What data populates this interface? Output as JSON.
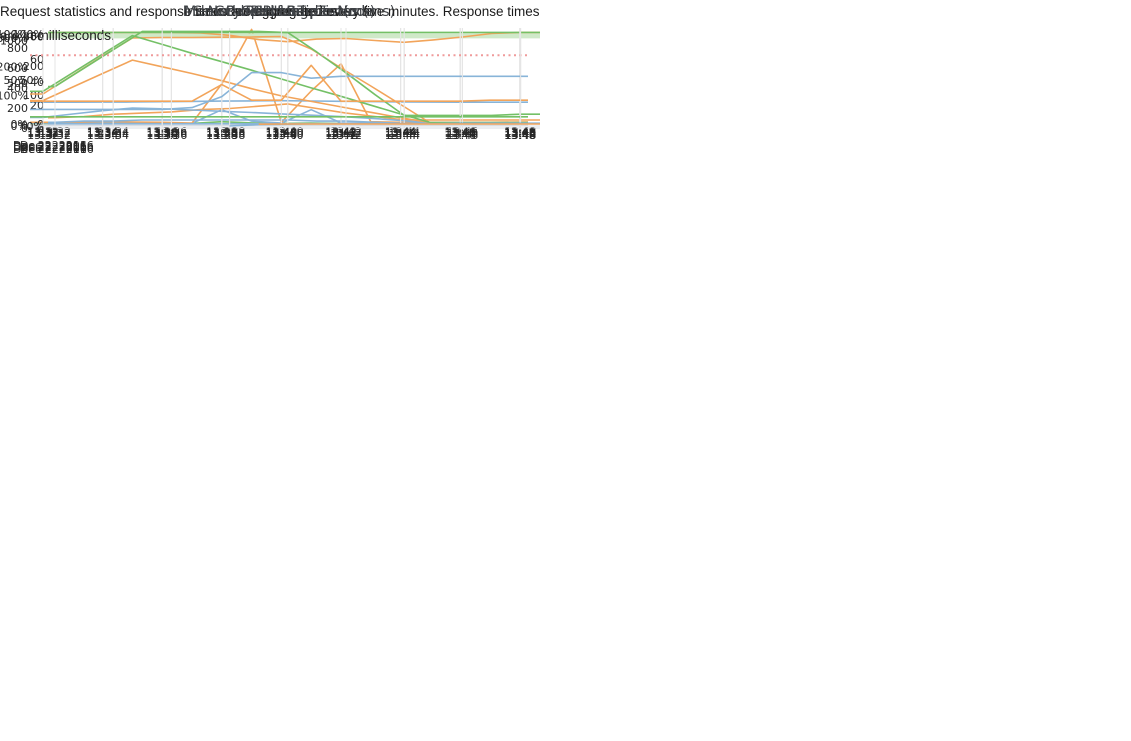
{
  "page": {
    "background": "#ffffff"
  },
  "note": {
    "text": "Request statistics and response times are aggregated every five minutes. Response times are in milliseconds."
  },
  "style": {
    "title_color": "#3f4246",
    "tick_color": "#262626",
    "grid_color": "#e5e5e5",
    "axis_color": "#d8dde3",
    "blue": "#88b4d8",
    "orange": "#f2a45a",
    "green": "#74c066",
    "light_green": "#cfe9c8",
    "red": "#ef9a9a"
  },
  "x_axis": {
    "tick_labels": [
      "13:32",
      "13:34",
      "13:36",
      "13:38",
      "13:40",
      "13:42",
      "13:44",
      "13:46",
      "13:48"
    ],
    "date_label": "Dec 22. 2016"
  },
  "chart_data": [
    {
      "type": "line",
      "title": "CPU Usage",
      "ylim": [
        0,
        335
      ],
      "y_ticks": [
        {
          "v": 0,
          "label": "0%"
        },
        {
          "v": 100,
          "label": "100%"
        },
        {
          "v": 200,
          "label": "200%"
        },
        {
          "v": 300,
          "label": "300%"
        }
      ],
      "series": [
        {
          "name": "series-green",
          "color": "#74c066",
          "values": [
            2,
            2,
            3,
            2,
            2,
            2,
            8,
            4,
            2,
            3,
            2,
            2,
            2,
            2,
            2,
            2,
            2
          ]
        },
        {
          "name": "series-blue",
          "color": "#88b4d8",
          "values": [
            3,
            3,
            4,
            3,
            3,
            2,
            50,
            10,
            3,
            50,
            4,
            3,
            3,
            3,
            3,
            3,
            3
          ]
        },
        {
          "name": "series-orange",
          "color": "#f2a45a",
          "values": [
            6,
            6,
            9,
            7,
            6,
            3,
            140,
            330,
            6,
            115,
            210,
            8,
            6,
            6,
            6,
            6,
            7
          ]
        }
      ]
    },
    {
      "type": "line",
      "title": "CPU Credits",
      "ylim": [
        0,
        330
      ],
      "y_ticks": [
        {
          "v": 0,
          "label": "0"
        },
        {
          "v": 100,
          "label": "100"
        },
        {
          "v": 200,
          "label": "200"
        },
        {
          "v": 300,
          "label": "300"
        }
      ],
      "series": [
        {
          "name": "series-light-green-band",
          "color": "#cfe9c8",
          "width": 5,
          "values": [
            303,
            303,
            303,
            303,
            303,
            303,
            303,
            303,
            303,
            303,
            303,
            303,
            303,
            303,
            303,
            303,
            303
          ]
        },
        {
          "name": "series-blue",
          "color": "#88b4d8",
          "values": [
            1,
            1,
            1,
            1,
            1,
            1,
            1,
            1,
            1,
            1,
            1,
            1,
            1,
            1,
            1,
            1,
            1
          ]
        },
        {
          "name": "series-orange",
          "color": "#f2a45a",
          "values": [
            315,
            315,
            315,
            315,
            315,
            313,
            305,
            290,
            283,
            292,
            294,
            287,
            281,
            289,
            299,
            311,
            315
          ]
        },
        {
          "name": "series-green",
          "color": "#74c066",
          "values": [
            315,
            315,
            315,
            315,
            315,
            315,
            315,
            315,
            315,
            315,
            315,
            315,
            315,
            315,
            315,
            315,
            315
          ]
        }
      ]
    },
    {
      "type": "line",
      "title": "Number of Requests",
      "ylim": [
        0,
        1000
      ],
      "y_ticks": [
        {
          "v": 0,
          "label": "0"
        },
        {
          "v": 200,
          "label": "200"
        },
        {
          "v": 400,
          "label": "400"
        },
        {
          "v": 600,
          "label": "600"
        },
        {
          "v": 800,
          "label": "800"
        }
      ],
      "series": [
        {
          "name": "series-blue",
          "color": "#88b4d8",
          "values": [
            258,
            258,
            259,
            260,
            263,
            266,
            269,
            271,
            273,
            270,
            267,
            264,
            261,
            259,
            258,
            258,
            258
          ]
        },
        {
          "name": "series-orange",
          "color": "#f2a45a",
          "values": [
            340,
            530,
            720,
            900,
            905,
            905,
            908,
            910,
            915,
            790,
            600,
            420,
            235,
            50,
            50,
            50,
            52
          ]
        }
      ]
    },
    {
      "type": "line",
      "title": "Search Response Times (ms)",
      "ylim": [
        0,
        87
      ],
      "y_ticks": [
        {
          "v": 0,
          "label": "0"
        },
        {
          "v": 20,
          "label": "20"
        },
        {
          "v": 40,
          "label": "40"
        },
        {
          "v": 60,
          "label": "60"
        },
        {
          "v": 80,
          "label": "80"
        }
      ],
      "series": [
        {
          "name": "series-blue",
          "color": "#88b4d8",
          "values": [
            5,
            6,
            6,
            7,
            7,
            7,
            7,
            7,
            7,
            6,
            6,
            5,
            4,
            4,
            4,
            4,
            4
          ]
        },
        {
          "name": "series-orange",
          "color": "#f2a45a",
          "values": [
            9,
            10,
            12,
            13,
            14,
            16,
            17,
            19,
            21,
            17,
            13,
            10,
            7,
            7,
            7,
            7,
            7
          ]
        },
        {
          "name": "series-green",
          "color": "#74c066",
          "values": [
            36,
            52,
            68,
            84,
            84,
            84,
            84,
            84,
            83,
            66,
            48,
            29,
            11,
            11,
            11,
            11,
            12
          ]
        }
      ]
    },
    {
      "type": "line",
      "title": "Index Response Times (ms)",
      "ylim": [
        0,
        1150
      ],
      "y_ticks": [
        {
          "v": 0,
          "label": "0"
        },
        {
          "v": 500,
          "label": "500"
        },
        {
          "v": 1000,
          "label": "1000"
        }
      ],
      "series": [
        {
          "name": "series-blue",
          "color": "#88b4d8",
          "values": [
            90,
            130,
            170,
            200,
            192,
            178,
            163,
            148,
            132,
            116,
            100,
            80,
            55,
            25,
            22,
            22,
            22
          ]
        },
        {
          "name": "series-orange",
          "color": "#f2a45a",
          "values": [
            290,
            450,
            610,
            770,
            690,
            610,
            525,
            430,
            345,
            280,
            215,
            150,
            85,
            30,
            28,
            28,
            28
          ]
        },
        {
          "name": "series-green",
          "color": "#74c066",
          "values": [
            400,
            620,
            840,
            1060,
            955,
            850,
            750,
            650,
            545,
            440,
            340,
            235,
            130,
            30,
            30,
            30,
            30
          ]
        }
      ]
    },
    {
      "type": "line",
      "title": "Memory Pressure per Node",
      "ylim": [
        0,
        100
      ],
      "y_ticks": [
        {
          "v": 0,
          "label": "0%"
        },
        {
          "v": 50,
          "label": "50%"
        },
        {
          "v": 100,
          "label": "100%"
        }
      ],
      "series": [
        {
          "name": "threshold-line",
          "color": "#ef9a9a",
          "dash": true,
          "width": 2,
          "values": [
            77,
            77,
            77,
            77,
            77,
            77,
            77,
            77,
            77,
            77,
            77,
            77,
            77,
            77,
            77,
            77,
            77
          ]
        },
        {
          "name": "series-green",
          "color": "#74c066",
          "values": [
            10,
            10,
            10,
            10,
            10,
            10,
            10,
            10,
            10,
            10,
            10,
            10,
            10,
            10,
            10,
            10,
            10
          ]
        },
        {
          "name": "series-blue",
          "color": "#88b4d8",
          "values": [
            18,
            18,
            18,
            18,
            18,
            20,
            32,
            58,
            58,
            52,
            54,
            54,
            54,
            54,
            54,
            54,
            54
          ]
        },
        {
          "name": "series-orange",
          "color": "#f2a45a",
          "values": [
            27,
            27,
            27,
            27,
            27,
            27,
            45,
            28,
            28,
            66,
            27,
            27,
            27,
            27,
            27,
            28,
            28
          ]
        }
      ]
    },
    {
      "type": "line",
      "title": "GC overhead per Node",
      "ylim": [
        0,
        100
      ],
      "y_ticks": [
        {
          "v": 0,
          "label": "0%"
        },
        {
          "v": 50,
          "label": "50%"
        },
        {
          "v": 100,
          "label": "100%"
        }
      ],
      "series": [
        {
          "name": "series-blue",
          "color": "#88b4d8",
          "values": [
            null,
            null,
            null,
            null,
            null,
            null,
            0,
            1.5,
            2,
            2.5,
            2.5,
            2.5,
            2.5,
            2.5,
            3,
            3,
            3
          ]
        },
        {
          "name": "series-orange",
          "color": "#f2a45a",
          "values": [
            null,
            null,
            null,
            null,
            null,
            null,
            null,
            2,
            2.2,
            2.2,
            2.2,
            2.2,
            2.2,
            2.2,
            2.2,
            2.2,
            2.2
          ]
        }
      ]
    }
  ]
}
